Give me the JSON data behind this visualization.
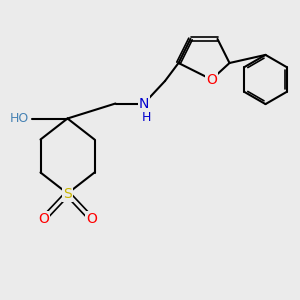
{
  "bg_color": "#ebebeb",
  "bond_color": "#000000",
  "bond_width": 1.5,
  "atom_colors": {
    "S": "#c8b400",
    "O": "#ff0000",
    "N": "#0000cd",
    "OH_O": "#4682b4",
    "OH_H": "#4682b4"
  },
  "font_size": 10
}
